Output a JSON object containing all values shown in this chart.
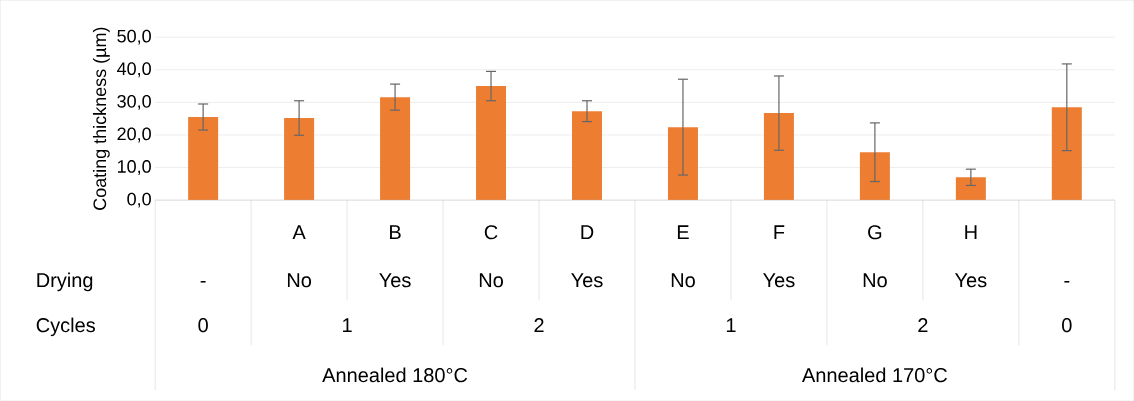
{
  "chart_data": {
    "type": "bar",
    "ylabel": "Coating thickness (µm)",
    "categories": [
      null,
      "A",
      "B",
      "C",
      "D",
      "E",
      "F",
      "G",
      "H",
      null
    ],
    "values": [
      25.5,
      25.2,
      31.6,
      35.0,
      27.3,
      22.4,
      26.7,
      14.7,
      7.0,
      28.5
    ],
    "errors": [
      4.0,
      5.3,
      4.0,
      4.5,
      3.2,
      14.7,
      11.4,
      9.0,
      2.5,
      13.3
    ],
    "color": "#ed7d31",
    "ylim": [
      0,
      50
    ],
    "yticks": [
      {
        "value": 0,
        "label": "0,0"
      },
      {
        "value": 10,
        "label": "10,0"
      },
      {
        "value": 20,
        "label": "20,0"
      },
      {
        "value": 30,
        "label": "30,0"
      },
      {
        "value": 40,
        "label": "40,0"
      },
      {
        "value": 50,
        "label": "50,0"
      }
    ],
    "grid": "y",
    "annotations": [
      "Drying",
      "-",
      "No",
      "Yes",
      "No",
      "Yes",
      "No",
      "Yes",
      "No",
      "Yes",
      "-",
      "Cycles",
      "0",
      "1",
      "2",
      "1",
      "2",
      "0",
      "Annealed 180°C",
      "Annealed 170°C"
    ]
  }
}
